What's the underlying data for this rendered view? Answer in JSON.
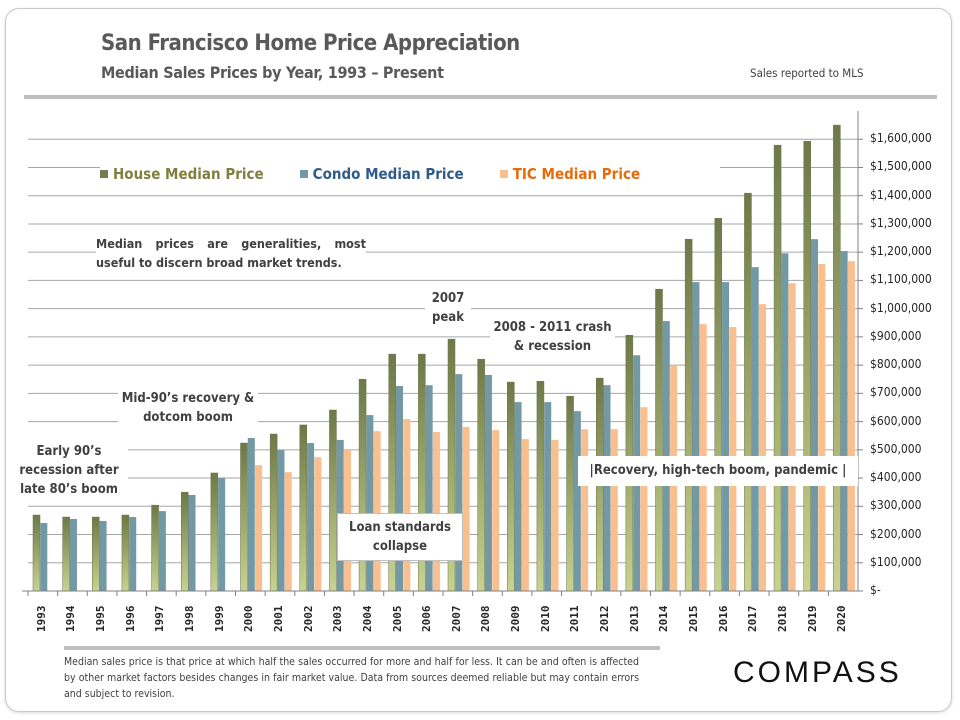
{
  "header": {
    "title": "San Francisco Home Price Appreciation",
    "subtitle": "Median Sales Prices by Year, 1993 – Present",
    "source": "Sales reported to MLS"
  },
  "annotations": {
    "note": "Median prices are generalities, most useful to discern broad market trends.",
    "early90s": "Early 90’s recession after late 80’s boom",
    "mid90s": "Mid-90’s recovery & dotcom boom",
    "peak2007": "2007 peak",
    "crash": "2008 - 2011 crash & recession",
    "loan": "Loan standards collapse",
    "recovery": "|Recovery, high-tech boom, pandemic |"
  },
  "footer": {
    "note": "Median sales price is that price at which half the sales occurred for more and half for less. It can be and often is affected by other market factors besides changes in fair market value. Data from sources deemed reliable but may contain errors and subject to revision.",
    "logo": "COMPASS"
  },
  "chart_data": {
    "type": "bar",
    "title": "San Francisco Home Price Appreciation",
    "xlabel": "",
    "ylabel": "",
    "ylim": [
      0,
      1700000
    ],
    "grid": true,
    "legend_position": "top",
    "y_ticks": [
      "$-",
      "$100,000",
      "$200,000",
      "$300,000",
      "$400,000",
      "$500,000",
      "$600,000",
      "$700,000",
      "$800,000",
      "$900,000",
      "$1,000,000",
      "$1,100,000",
      "$1,200,000",
      "$1,300,000",
      "$1,400,000",
      "$1,500,000",
      "$1,600,000"
    ],
    "categories": [
      "1993",
      "1994",
      "1995",
      "1996",
      "1997",
      "1998",
      "1999",
      "2000",
      "2001",
      "2002",
      "2003",
      "2004",
      "2005",
      "2006",
      "2007",
      "2008",
      "2009",
      "2010",
      "2011",
      "2012",
      "2013",
      "2014",
      "2015",
      "2016",
      "2017",
      "2018",
      "2019",
      "2020"
    ],
    "series": [
      {
        "name": "House Median Price",
        "color": "#737d4f",
        "values": [
          269000,
          262000,
          262000,
          269000,
          304000,
          350000,
          418000,
          524000,
          556000,
          588000,
          641000,
          750000,
          839000,
          839000,
          892000,
          821000,
          740000,
          743000,
          690000,
          754000,
          906000,
          1069000,
          1246000,
          1320000,
          1409000,
          1579000,
          1593000,
          1650000
        ]
      },
      {
        "name": "Condo Median Price",
        "color": "#7299a4",
        "values": [
          241000,
          255000,
          248000,
          262000,
          283000,
          340000,
          400000,
          542000,
          499000,
          524000,
          535000,
          623000,
          726000,
          729000,
          768000,
          765000,
          669000,
          669000,
          637000,
          729000,
          835000,
          956000,
          1094000,
          1094000,
          1147000,
          1196000,
          1246000,
          1204000
        ]
      },
      {
        "name": "TIC Median Price",
        "color": "#f9bf8f",
        "values": [
          null,
          null,
          null,
          null,
          null,
          null,
          null,
          446000,
          421000,
          474000,
          499000,
          566000,
          609000,
          563000,
          581000,
          570000,
          538000,
          535000,
          573000,
          573000,
          651000,
          800000,
          945000,
          935000,
          1016000,
          1090000,
          1158000,
          1168000
        ]
      }
    ],
    "legend_text_colors": [
      "#7f7f3f",
      "#2e5b8a",
      "#e46c0a"
    ]
  }
}
